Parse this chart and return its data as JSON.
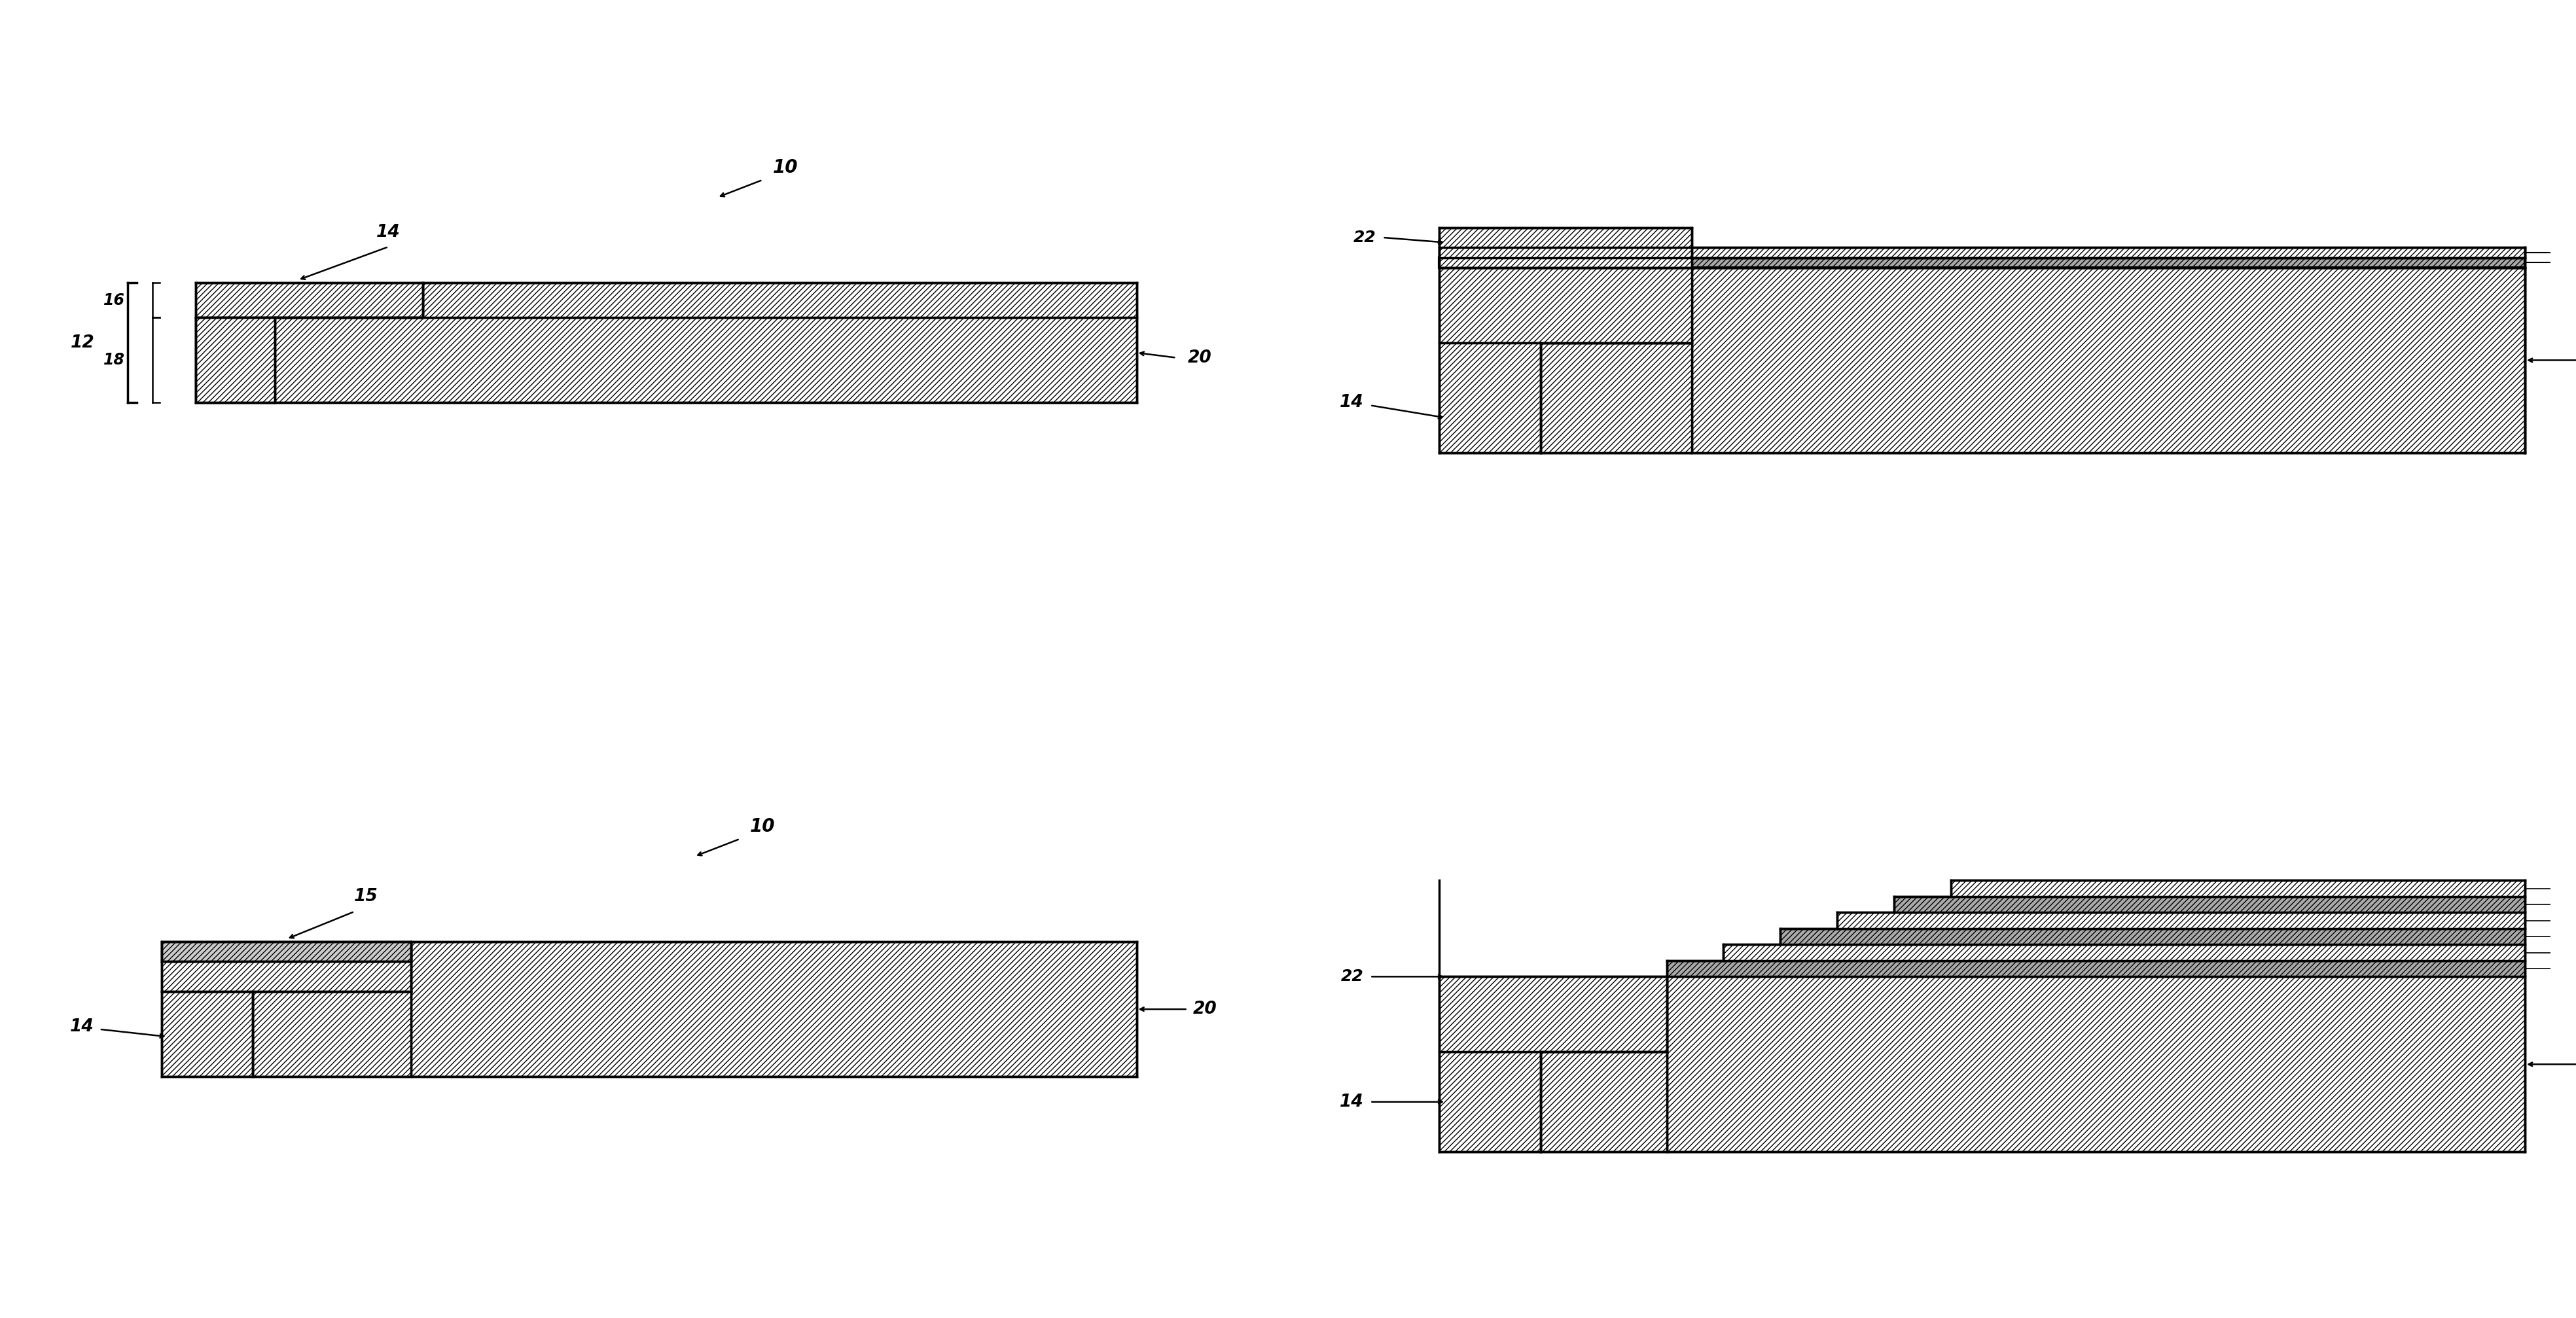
{
  "bg_color": "#ffffff",
  "fig_width": 39.36,
  "fig_height": 20.14,
  "lw": 2.5
}
